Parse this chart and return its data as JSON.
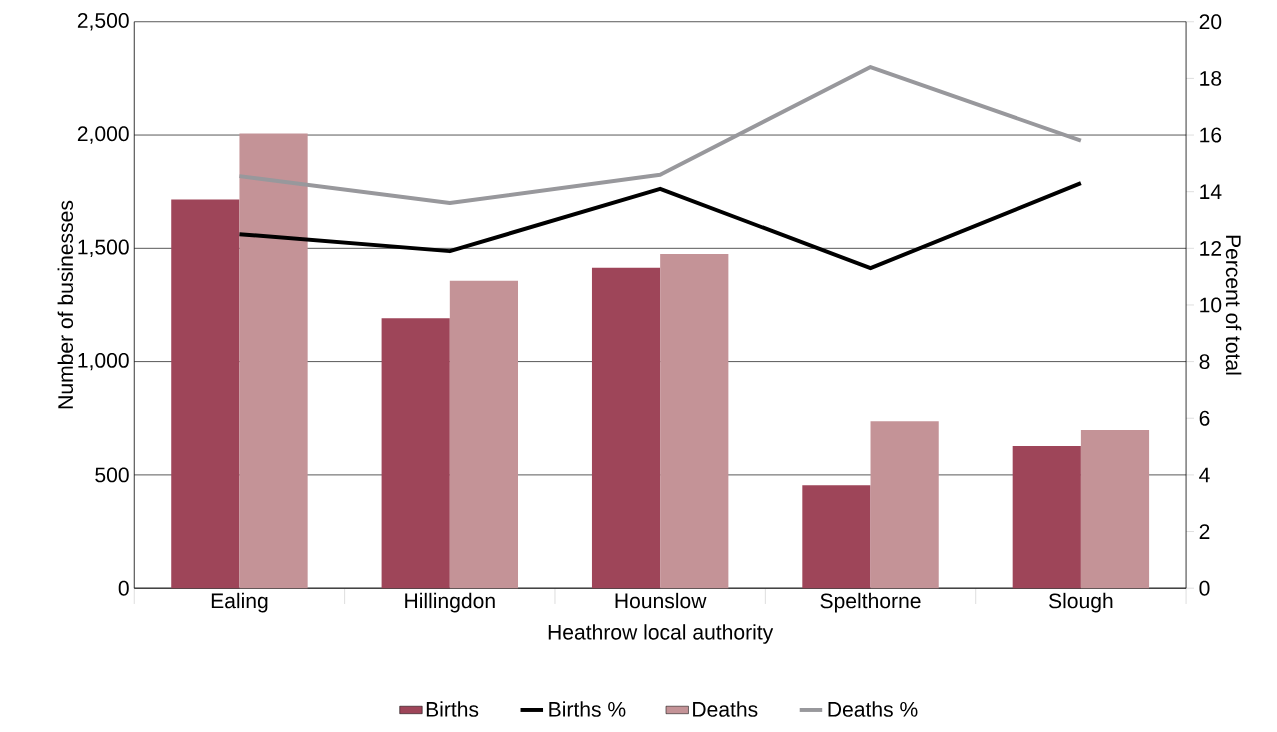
{
  "chart_data": {
    "type": "bar",
    "categories": [
      "Ealing",
      "Hillingdon",
      "Hounslow",
      "Spelthorne",
      "Slough"
    ],
    "series": [
      {
        "name": "Births",
        "color": "#9e4559",
        "values": [
          1715,
          1191,
          1414,
          454,
          628
        ]
      },
      {
        "name": "Births %",
        "type": "line",
        "axis": "y2",
        "color": "#000000",
        "values": [
          12.5,
          11.9,
          14.1,
          11.3,
          14.3
        ]
      },
      {
        "name": "Deaths",
        "color": "#c49397",
        "values": [
          2007,
          1357,
          1475,
          737,
          698
        ]
      },
      {
        "name": "Deaths %",
        "type": "line",
        "axis": "y2",
        "color": "#98989c",
        "values": [
          14.55,
          13.6,
          14.6,
          18.4,
          15.8
        ]
      }
    ],
    "xlabel": "Heathrow local authority",
    "ylabel": "Number of businesses",
    "y2label": "Percent of total",
    "ylim": [
      0,
      2500
    ],
    "yticks": [
      {
        "value": 0,
        "label": "0"
      },
      {
        "value": 500,
        "label": "500"
      },
      {
        "value": 1000,
        "label": "1,000"
      },
      {
        "value": 1500,
        "label": "1,500"
      },
      {
        "value": 2000,
        "label": "2,000"
      },
      {
        "value": 2500,
        "label": "2,500"
      }
    ],
    "y2lim": [
      0,
      20
    ],
    "y2ticks": [
      0,
      2,
      4,
      6,
      8,
      10,
      12,
      14,
      16,
      18,
      20
    ],
    "grid": "y",
    "legend": "bottom"
  }
}
